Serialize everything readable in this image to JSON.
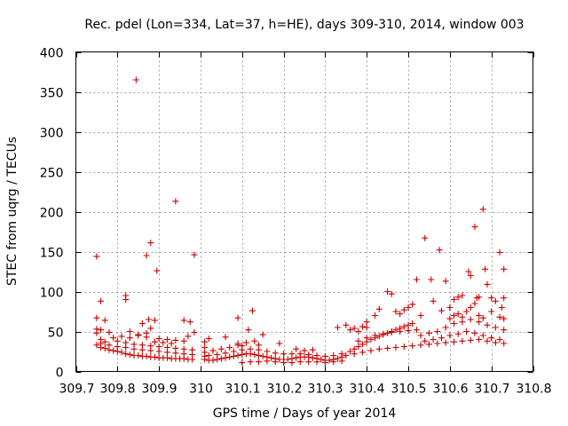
{
  "chart_data": {
    "type": "scatter",
    "title": "Rec. pdel (Lon=334, Lat=37, h=HE), days 309-310, 2014, window 003",
    "xlabel": "GPS time / Days of year 2014",
    "ylabel": "STEC from uqrg / TECUs",
    "xlim": [
      309.7,
      310.8
    ],
    "ylim": [
      0,
      400
    ],
    "x_ticks": [
      309.7,
      309.8,
      309.9,
      310.0,
      310.1,
      310.2,
      310.3,
      310.4,
      310.5,
      310.6,
      310.7,
      310.8
    ],
    "x_tick_labels": [
      "309.7",
      "309.8",
      "309.9",
      "310",
      "310.1",
      "310.2",
      "310.3",
      "310.4",
      "310.5",
      "310.6",
      "310.7",
      "310.8"
    ],
    "y_ticks": [
      0,
      50,
      100,
      150,
      200,
      250,
      300,
      350,
      400
    ],
    "y_tick_labels": [
      "0",
      "50",
      "100",
      "150",
      "200",
      "250",
      "300",
      "350",
      "400"
    ],
    "grid": true,
    "marker": "plus",
    "color": "#cc0000",
    "series": [
      {
        "name": "STEC",
        "points": [
          [
            309.75,
            144
          ],
          [
            309.76,
            88
          ],
          [
            309.77,
            64
          ],
          [
            309.75,
            67
          ],
          [
            309.76,
            52
          ],
          [
            309.75,
            53
          ],
          [
            309.75,
            48
          ],
          [
            309.78,
            49
          ],
          [
            309.79,
            42
          ],
          [
            309.76,
            40
          ],
          [
            309.77,
            37
          ],
          [
            309.75,
            33
          ],
          [
            309.76,
            30
          ],
          [
            309.77,
            29
          ],
          [
            309.78,
            27
          ],
          [
            309.79,
            26
          ],
          [
            309.8,
            25
          ],
          [
            309.81,
            24
          ],
          [
            309.82,
            22
          ],
          [
            309.83,
            21
          ],
          [
            309.84,
            20
          ],
          [
            309.85,
            20
          ],
          [
            309.86,
            19
          ],
          [
            309.87,
            19
          ],
          [
            309.88,
            18
          ],
          [
            309.89,
            18
          ],
          [
            309.9,
            17
          ],
          [
            309.91,
            17
          ],
          [
            309.92,
            17
          ],
          [
            309.93,
            16
          ],
          [
            309.94,
            16
          ],
          [
            309.95,
            16
          ],
          [
            309.96,
            16
          ],
          [
            309.97,
            15
          ],
          [
            309.98,
            15
          ],
          [
            309.76,
            35
          ],
          [
            309.78,
            33
          ],
          [
            309.8,
            31
          ],
          [
            309.82,
            30
          ],
          [
            309.84,
            28
          ],
          [
            309.86,
            27
          ],
          [
            309.88,
            26
          ],
          [
            309.9,
            25
          ],
          [
            309.92,
            24
          ],
          [
            309.94,
            23
          ],
          [
            309.96,
            22
          ],
          [
            309.98,
            21
          ],
          [
            309.8,
            38
          ],
          [
            309.82,
            36
          ],
          [
            309.84,
            34
          ],
          [
            309.86,
            33
          ],
          [
            309.88,
            32
          ],
          [
            309.9,
            31
          ],
          [
            309.92,
            30
          ],
          [
            309.94,
            29
          ],
          [
            309.96,
            28
          ],
          [
            309.98,
            27
          ],
          [
            309.82,
            95
          ],
          [
            309.82,
            90
          ],
          [
            309.845,
            365
          ],
          [
            309.86,
            60
          ],
          [
            309.87,
            145
          ],
          [
            309.88,
            161
          ],
          [
            309.875,
            65
          ],
          [
            309.89,
            64
          ],
          [
            309.895,
            126
          ],
          [
            309.94,
            213
          ],
          [
            309.96,
            64
          ],
          [
            309.975,
            62
          ],
          [
            309.985,
            146
          ],
          [
            309.985,
            49
          ],
          [
            309.83,
            50
          ],
          [
            309.85,
            46
          ],
          [
            309.87,
            48
          ],
          [
            309.88,
            54
          ],
          [
            309.9,
            41
          ],
          [
            309.92,
            40
          ],
          [
            309.94,
            39
          ],
          [
            309.96,
            38
          ],
          [
            309.97,
            44
          ],
          [
            309.81,
            44
          ],
          [
            309.83,
            42
          ],
          [
            309.85,
            45
          ],
          [
            309.87,
            43
          ],
          [
            309.89,
            37
          ],
          [
            309.91,
            36
          ],
          [
            309.93,
            35
          ],
          [
            310.01,
            37
          ],
          [
            310.01,
            30
          ],
          [
            310.01,
            24
          ],
          [
            310.01,
            19
          ],
          [
            310.01,
            15
          ],
          [
            310.02,
            14
          ],
          [
            310.03,
            14
          ],
          [
            310.04,
            15
          ],
          [
            310.05,
            16
          ],
          [
            310.06,
            17
          ],
          [
            310.07,
            18
          ],
          [
            310.08,
            19
          ],
          [
            310.09,
            20
          ],
          [
            310.1,
            21
          ],
          [
            310.11,
            22
          ],
          [
            310.12,
            22
          ],
          [
            310.13,
            21
          ],
          [
            310.14,
            20
          ],
          [
            310.15,
            19
          ],
          [
            310.16,
            18
          ],
          [
            310.17,
            17
          ],
          [
            310.18,
            16
          ],
          [
            310.19,
            15
          ],
          [
            310.2,
            15
          ],
          [
            310.21,
            15
          ],
          [
            310.22,
            16
          ],
          [
            310.23,
            17
          ],
          [
            310.24,
            18
          ],
          [
            310.25,
            18
          ],
          [
            310.26,
            18
          ],
          [
            310.27,
            17
          ],
          [
            310.28,
            16
          ],
          [
            310.29,
            15
          ],
          [
            310.3,
            14
          ],
          [
            310.31,
            14
          ],
          [
            310.32,
            15
          ],
          [
            310.33,
            16
          ],
          [
            310.34,
            18
          ],
          [
            310.02,
            20
          ],
          [
            310.04,
            21
          ],
          [
            310.06,
            23
          ],
          [
            310.08,
            25
          ],
          [
            310.1,
            27
          ],
          [
            310.12,
            28
          ],
          [
            310.14,
            27
          ],
          [
            310.16,
            25
          ],
          [
            310.18,
            23
          ],
          [
            310.2,
            22
          ],
          [
            310.22,
            22
          ],
          [
            310.24,
            22
          ],
          [
            310.26,
            21
          ],
          [
            310.28,
            20
          ],
          [
            310.3,
            19
          ],
          [
            310.32,
            20
          ],
          [
            310.34,
            22
          ],
          [
            310.03,
            26
          ],
          [
            310.05,
            28
          ],
          [
            310.07,
            30
          ],
          [
            310.09,
            33
          ],
          [
            310.11,
            36
          ],
          [
            310.13,
            38
          ],
          [
            310.02,
            41
          ],
          [
            310.06,
            43
          ],
          [
            310.09,
            35
          ],
          [
            310.1,
            32
          ],
          [
            310.14,
            33
          ],
          [
            310.15,
            46
          ],
          [
            310.19,
            35
          ],
          [
            310.23,
            28
          ],
          [
            310.09,
            67
          ],
          [
            310.115,
            52
          ],
          [
            310.125,
            76
          ],
          [
            310.25,
            26
          ],
          [
            310.27,
            27
          ],
          [
            310.1,
            11
          ],
          [
            310.12,
            12
          ],
          [
            310.14,
            12
          ],
          [
            310.16,
            13
          ],
          [
            310.18,
            12
          ],
          [
            310.2,
            11
          ],
          [
            310.22,
            11
          ],
          [
            310.24,
            12
          ],
          [
            310.26,
            12
          ],
          [
            310.28,
            12
          ],
          [
            310.3,
            11
          ],
          [
            310.32,
            12
          ],
          [
            310.34,
            13
          ],
          [
            310.33,
            55
          ],
          [
            310.35,
            58
          ],
          [
            310.36,
            52
          ],
          [
            310.37,
            54
          ],
          [
            310.38,
            50
          ],
          [
            310.39,
            56
          ],
          [
            310.4,
            55
          ],
          [
            310.36,
            25
          ],
          [
            310.37,
            28
          ],
          [
            310.38,
            31
          ],
          [
            310.39,
            34
          ],
          [
            310.4,
            37
          ],
          [
            310.41,
            40
          ],
          [
            310.42,
            42
          ],
          [
            310.43,
            44
          ],
          [
            310.44,
            46
          ],
          [
            310.45,
            48
          ],
          [
            310.46,
            50
          ],
          [
            310.47,
            52
          ],
          [
            310.48,
            54
          ],
          [
            310.49,
            56
          ],
          [
            310.5,
            58
          ],
          [
            310.51,
            60
          ],
          [
            310.35,
            20
          ],
          [
            310.37,
            22
          ],
          [
            310.39,
            24
          ],
          [
            310.41,
            26
          ],
          [
            310.43,
            28
          ],
          [
            310.45,
            29
          ],
          [
            310.47,
            30
          ],
          [
            310.49,
            31
          ],
          [
            310.51,
            32
          ],
          [
            310.53,
            33
          ],
          [
            310.55,
            34
          ],
          [
            310.57,
            35
          ],
          [
            310.59,
            36
          ],
          [
            310.61,
            37
          ],
          [
            310.63,
            38
          ],
          [
            310.65,
            39
          ],
          [
            310.67,
            40
          ],
          [
            310.69,
            38
          ],
          [
            310.71,
            36
          ],
          [
            310.73,
            35
          ],
          [
            310.38,
            38
          ],
          [
            310.4,
            42
          ],
          [
            310.42,
            45
          ],
          [
            310.44,
            47
          ],
          [
            310.46,
            49
          ],
          [
            310.48,
            50
          ],
          [
            310.5,
            51
          ],
          [
            310.52,
            52
          ],
          [
            310.4,
            62
          ],
          [
            310.42,
            70
          ],
          [
            310.43,
            78
          ],
          [
            310.45,
            100
          ],
          [
            310.46,
            97
          ],
          [
            310.47,
            75
          ],
          [
            310.48,
            72
          ],
          [
            310.49,
            77
          ],
          [
            310.5,
            80
          ],
          [
            310.51,
            84
          ],
          [
            310.52,
            115
          ],
          [
            310.53,
            70
          ],
          [
            310.54,
            167
          ],
          [
            310.555,
            115
          ],
          [
            310.56,
            88
          ],
          [
            310.575,
            152
          ],
          [
            310.58,
            76
          ],
          [
            310.59,
            113
          ],
          [
            310.6,
            80
          ],
          [
            310.61,
            90
          ],
          [
            310.62,
            93
          ],
          [
            310.63,
            95
          ],
          [
            310.645,
            125
          ],
          [
            310.65,
            120
          ],
          [
            310.66,
            181
          ],
          [
            310.665,
            92
          ],
          [
            310.67,
            93
          ],
          [
            310.68,
            203
          ],
          [
            310.685,
            128
          ],
          [
            310.69,
            109
          ],
          [
            310.7,
            92
          ],
          [
            310.71,
            88
          ],
          [
            310.72,
            149
          ],
          [
            310.73,
            128
          ],
          [
            310.73,
            92
          ],
          [
            310.725,
            80
          ],
          [
            310.53,
            45
          ],
          [
            310.55,
            48
          ],
          [
            310.57,
            50
          ],
          [
            310.59,
            55
          ],
          [
            310.61,
            60
          ],
          [
            310.63,
            62
          ],
          [
            310.65,
            65
          ],
          [
            310.67,
            62
          ],
          [
            310.69,
            58
          ],
          [
            310.71,
            55
          ],
          [
            310.73,
            52
          ],
          [
            310.54,
            38
          ],
          [
            310.56,
            40
          ],
          [
            310.58,
            42
          ],
          [
            310.6,
            45
          ],
          [
            310.62,
            47
          ],
          [
            310.64,
            50
          ],
          [
            310.66,
            48
          ],
          [
            310.68,
            45
          ],
          [
            310.7,
            42
          ],
          [
            310.72,
            40
          ],
          [
            310.6,
            66
          ],
          [
            310.61,
            70
          ],
          [
            310.62,
            72
          ],
          [
            310.63,
            68
          ],
          [
            310.64,
            75
          ],
          [
            310.65,
            80
          ],
          [
            310.66,
            85
          ],
          [
            310.67,
            70
          ],
          [
            310.68,
            67
          ],
          [
            310.7,
            75
          ],
          [
            310.72,
            68
          ],
          [
            310.73,
            66
          ]
        ]
      }
    ]
  }
}
